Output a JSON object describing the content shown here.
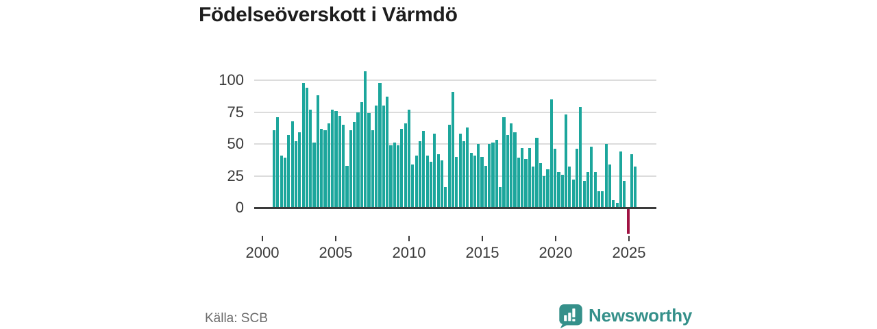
{
  "chart": {
    "title": "Födelseöverskott i Värmdö"
  },
  "source": {
    "label": "Källa: SCB"
  },
  "branding": {
    "name": "Newsworthy",
    "logo_icon": "speech-bubble-bar-chart-icon",
    "color": "#35908a"
  },
  "chart_data": {
    "type": "bar",
    "title": "Födelseöverskott i Värmdö",
    "frequency": "quarterly",
    "x_range": "2000 Q3 – 2025 Q2",
    "x_tick_labels": [
      "2000",
      "2005",
      "2010",
      "2015",
      "2020",
      "2025"
    ],
    "y_tick_labels": [
      "0",
      "25",
      "50",
      "75",
      "100"
    ],
    "y_ticks": [
      0,
      25,
      50,
      75,
      100
    ],
    "ylim": [
      -25,
      110
    ],
    "grid": "horizontal",
    "legend": "none",
    "positive_color": "#1ca69c",
    "negative_color": "#a01243",
    "note": "one negative quarter highlighted in dark red near the 2025 tick",
    "years": [
      {
        "year": 2000,
        "start_quarter": 3,
        "values": [
          61,
          71
        ]
      },
      {
        "year": 2001,
        "values": [
          41,
          39,
          57,
          68
        ]
      },
      {
        "year": 2002,
        "values": [
          52,
          59,
          98,
          94
        ]
      },
      {
        "year": 2003,
        "values": [
          77,
          51,
          88,
          62
        ]
      },
      {
        "year": 2004,
        "values": [
          61,
          66,
          77,
          76
        ]
      },
      {
        "year": 2005,
        "values": [
          72,
          65,
          33,
          61
        ]
      },
      {
        "year": 2006,
        "values": [
          67,
          75,
          83,
          107
        ]
      },
      {
        "year": 2007,
        "values": [
          74,
          61,
          80,
          98
        ]
      },
      {
        "year": 2008,
        "values": [
          80,
          87,
          49,
          51
        ]
      },
      {
        "year": 2009,
        "values": [
          49,
          62,
          66,
          77
        ]
      },
      {
        "year": 2010,
        "values": [
          34,
          41,
          52,
          60
        ]
      },
      {
        "year": 2011,
        "values": [
          41,
          36,
          58,
          42
        ]
      },
      {
        "year": 2012,
        "values": [
          37,
          16,
          65,
          91
        ]
      },
      {
        "year": 2013,
        "values": [
          40,
          58,
          52,
          63
        ]
      },
      {
        "year": 2014,
        "values": [
          43,
          41,
          50,
          40
        ]
      },
      {
        "year": 2015,
        "values": [
          33,
          50,
          51,
          53
        ]
      },
      {
        "year": 2016,
        "values": [
          16,
          71,
          57,
          66
        ]
      },
      {
        "year": 2017,
        "values": [
          59,
          39,
          47,
          38
        ]
      },
      {
        "year": 2018,
        "values": [
          47,
          32,
          55,
          35
        ]
      },
      {
        "year": 2019,
        "values": [
          25,
          30,
          85,
          46
        ]
      },
      {
        "year": 2020,
        "values": [
          28,
          26,
          73,
          32
        ]
      },
      {
        "year": 2021,
        "values": [
          22,
          46,
          79,
          21
        ]
      },
      {
        "year": 2022,
        "values": [
          28,
          48,
          28,
          13
        ]
      },
      {
        "year": 2023,
        "values": [
          13,
          50,
          34,
          6
        ]
      },
      {
        "year": 2024,
        "values": [
          4,
          44,
          21,
          -20
        ]
      },
      {
        "year": 2025,
        "values": [
          42,
          32
        ]
      }
    ]
  }
}
